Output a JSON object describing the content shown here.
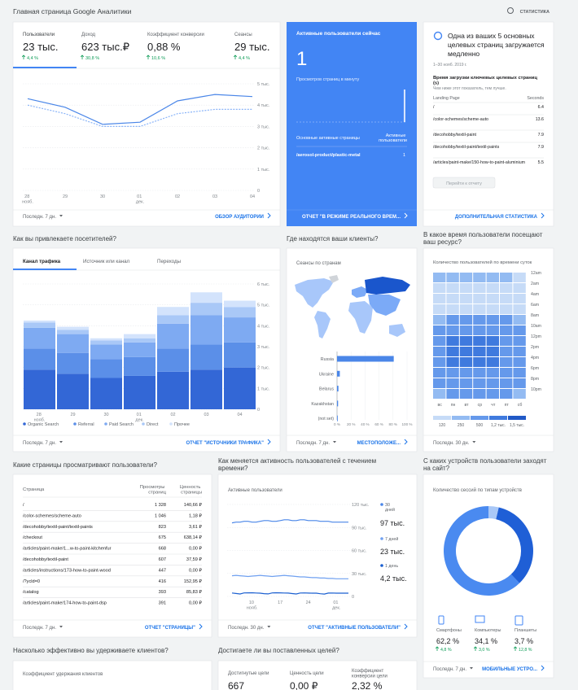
{
  "header": {
    "title": "Главная страница Google Аналитики",
    "action": "СТАТИСТИКА"
  },
  "audience": {
    "metrics": [
      {
        "name": "Пользователи",
        "value": "23 тыс.",
        "change": "4,4 %"
      },
      {
        "name": "Доход",
        "value": "623 тыс.₽",
        "change": "30,8 %"
      },
      {
        "name": "Коэффициент конверсии",
        "value": "0,88 %",
        "change": "10,6 %"
      },
      {
        "name": "Сеансы",
        "value": "29 тыс.",
        "change": "4,4 %"
      }
    ],
    "chart": {
      "type": "line",
      "x": [
        "28 нояб.",
        "29",
        "30",
        "01 дек.",
        "02",
        "03",
        "04"
      ],
      "series": [
        {
          "color": "#4a86e8",
          "values": [
            4300,
            3900,
            3100,
            3200,
            4200,
            4500,
            4400
          ]
        },
        {
          "color": "#8ab4f8",
          "dashed": true,
          "values": [
            4000,
            3600,
            3000,
            3000,
            3600,
            3800,
            3800
          ]
        }
      ],
      "ylim": [
        0,
        5000
      ],
      "yticks": [
        0,
        {
          "value": 1000,
          "label": "1 тыс."
        },
        {
          "value": 2000,
          "label": "2 тыс."
        },
        {
          "value": 3000,
          "label": "3 тыс."
        },
        {
          "value": 4000,
          "label": "4 тыс."
        },
        {
          "value": 5000,
          "label": "5 тыс."
        }
      ],
      "grid": true
    },
    "period": "Последн. 7 дн.",
    "link": "ОБЗОР АУДИТОРИИ"
  },
  "realtime": {
    "title": "Активные пользователи сейчас",
    "value": "1",
    "pageviews_label": "Просмотров страниц в минуту",
    "pageviews": [
      0,
      0,
      0,
      0,
      0,
      0,
      0,
      0,
      0,
      0,
      0,
      0,
      0,
      0,
      0,
      0,
      0,
      0,
      0,
      0,
      0,
      0,
      0,
      0,
      0,
      0,
      0,
      0,
      0,
      1
    ],
    "pages_header": "Основные активные страницы",
    "users_header": "Активные пользователи",
    "pages": [
      {
        "page": "/aerosol-product/plastic-metal",
        "users": "1"
      }
    ],
    "link": "ОТЧЕТ \"В РЕЖИМЕ РЕАЛЬНОГО ВРЕМ..."
  },
  "insight": {
    "title": "Одна из ваших 5 основных целевых страниц загружается медленно",
    "date": "1–30 нояб. 2019 г.",
    "subtitle": "Время загрузки ключевых целевых страниц (s)",
    "note": "Чем ниже этот показатель, тем лучше.",
    "columns": [
      "Landing Page",
      "Seconds"
    ],
    "rows": [
      [
        "/",
        "6.4"
      ],
      [
        "/color-schemes/scheme-auto",
        "13.6"
      ],
      [
        "/decohobby/textil-paint",
        "7.9"
      ],
      [
        "/decohobby/textil-paint/textil-paints",
        "7.9"
      ],
      [
        "/articles/paint-make/150-how-to-paint-aluminium",
        "5.5"
      ]
    ],
    "button": "Перейти к отчету",
    "link": "ДОПОЛНИТЕЛЬНАЯ СТАТИСТИКА"
  },
  "traffic": {
    "heading": "Как вы привлекаете посетителей?",
    "tabs": [
      "Канал трафика",
      "Источник или канал",
      "Переходы"
    ],
    "chart": {
      "type": "bar",
      "stacked": true,
      "x": [
        "28 нояб.",
        "29",
        "30",
        "01 дек.",
        "02",
        "03",
        "04"
      ],
      "series": [
        {
          "name": "Organic Search",
          "color": "#3367d6",
          "values": [
            1900,
            1700,
            1500,
            1600,
            1800,
            1900,
            2000
          ]
        },
        {
          "name": "Referral",
          "color": "#5b8fe8",
          "values": [
            1000,
            1000,
            900,
            900,
            1100,
            1200,
            1200
          ]
        },
        {
          "name": "Paid Search",
          "color": "#7eaaf2",
          "values": [
            1000,
            900,
            700,
            700,
            1200,
            1400,
            1200
          ]
        },
        {
          "name": "Direct",
          "color": "#a9c8f7",
          "values": [
            250,
            200,
            200,
            200,
            400,
            600,
            500
          ]
        },
        {
          "name": "Прочее",
          "color": "#d3e3fc",
          "values": [
            100,
            150,
            100,
            200,
            400,
            500,
            300
          ]
        }
      ],
      "ylim": [
        0,
        6000
      ],
      "yticks": [
        0,
        {
          "value": 1000,
          "label": "1 тыс."
        },
        {
          "value": 2000,
          "label": "2 тыс."
        },
        {
          "value": 3000,
          "label": "3 тыс."
        },
        {
          "value": 4000,
          "label": "4 тыс."
        },
        {
          "value": 5000,
          "label": "5 тыс."
        },
        {
          "value": 6000,
          "label": "6 тыс."
        }
      ],
      "grid": true
    },
    "period": "Последн. 7 дн.",
    "link": "ОТЧЕТ \"ИСТОЧНИКИ ТРАФИКА\""
  },
  "geo": {
    "heading": "Где находятся ваши клиенты?",
    "subtitle": "Сеансы по странам",
    "chart": {
      "type": "bar",
      "orientation": "horizontal",
      "categories": [
        "Russia",
        "Ukraine",
        "Belarus",
        "Kazakhstan",
        "(not set)"
      ],
      "values": [
        81,
        4,
        2,
        1.5,
        1
      ],
      "color": "#4a86e8",
      "xlim": [
        0,
        100
      ],
      "xticks": [
        {
          "value": 0,
          "label": "0 %"
        },
        {
          "value": 20,
          "label": "20 %"
        },
        {
          "value": 40,
          "label": "40 %"
        },
        {
          "value": 60,
          "label": "60 %"
        },
        {
          "value": 80,
          "label": "80 %"
        },
        {
          "value": 100,
          "label": "100 %"
        }
      ]
    },
    "period": "Последн. 7 дн.",
    "link": "МЕСТОПОЛОЖЕ..."
  },
  "time": {
    "heading": "В какое время пользователи посещают ваш ресурс?",
    "subtitle": "Количество пользователей по времени суток",
    "chart": {
      "type": "heatmap",
      "hours": [
        "12am",
        "2am",
        "4am",
        "6am",
        "8am",
        "10am",
        "12pm",
        "2pm",
        "4pm",
        "6pm",
        "8pm",
        "10pm"
      ],
      "days": [
        "вс",
        "пн",
        "вт",
        "ср",
        "чт",
        "пт",
        "сб"
      ],
      "values": [
        [
          250,
          300,
          320,
          310,
          300,
          280,
          220
        ],
        [
          120,
          140,
          150,
          150,
          140,
          130,
          110
        ],
        [
          90,
          100,
          110,
          100,
          100,
          100,
          90
        ],
        [
          130,
          220,
          230,
          220,
          220,
          210,
          140
        ],
        [
          380,
          700,
          720,
          700,
          690,
          650,
          400
        ],
        [
          650,
          1100,
          1150,
          1120,
          1100,
          1000,
          620
        ],
        [
          750,
          1250,
          1300,
          1280,
          1250,
          1100,
          700
        ],
        [
          760,
          1300,
          1350,
          1300,
          1280,
          1100,
          690
        ],
        [
          720,
          1200,
          1250,
          1220,
          1200,
          1000,
          640
        ],
        [
          640,
          950,
          980,
          960,
          940,
          800,
          560
        ],
        [
          600,
          800,
          820,
          800,
          780,
          650,
          520
        ],
        [
          480,
          600,
          620,
          610,
          600,
          500,
          420
        ]
      ],
      "scale": [
        {
          "value": 120,
          "label": "120",
          "color": "#c6dbf7"
        },
        {
          "value": 250,
          "label": "250",
          "color": "#93bbf2"
        },
        {
          "value": 500,
          "label": "500",
          "color": "#6599eb"
        },
        {
          "value": 1200,
          "label": "1,2 тыс.",
          "color": "#3f7ade"
        },
        {
          "value": 1500,
          "label": "1,5 тыс.",
          "color": "#2159c6"
        }
      ]
    },
    "period": "Последн. 30 дн."
  },
  "pages": {
    "heading": "Какие страницы просматривают пользователи?",
    "columns": [
      "Страница",
      "Просмотры страниц",
      "Ценность страницы"
    ],
    "rows": [
      [
        "/",
        "1 328",
        "140,66 ₽"
      ],
      [
        "/color-schemes/scheme-auto",
        "1 046",
        "1,18 ₽"
      ],
      [
        "/decohobby/textil-paint/textil-paints",
        "823",
        "3,61 ₽"
      ],
      [
        "/checkout",
        "675",
        "638,14 ₽"
      ],
      [
        "/articles/paint-make/1...w-to-paint-kitchenfur",
        "668",
        "0,00 ₽"
      ],
      [
        "/decohobby/textil-paint",
        "607",
        "37,59 ₽"
      ],
      [
        "/articles/instructions/173-how-to-paint-wood",
        "447",
        "0,00 ₽"
      ],
      [
        "/?ycld=0",
        "416",
        "152,95 ₽"
      ],
      [
        "/catalog",
        "393",
        "85,83 ₽"
      ],
      [
        "/articles/paint-make/174-how-to-paint-dsp",
        "391",
        "0,00 ₽"
      ]
    ],
    "period": "Последн. 7 дн.",
    "link": "ОТЧЕТ \"СТРАНИЦЫ\""
  },
  "active": {
    "heading": "Как меняется активность пользователей с течением времени?",
    "subtitle": "Активные пользователи",
    "chart": {
      "type": "line",
      "x": [
        null,
        null,
        null,
        null,
        null,
        "10 нояб.",
        null,
        null,
        null,
        null,
        null,
        null,
        "17",
        null,
        null,
        null,
        null,
        null,
        null,
        "24",
        null,
        null,
        null,
        null,
        null,
        null,
        "01 дек.",
        null,
        null,
        null
      ],
      "series": [
        {
          "name": "30 дней",
          "total": "97 тыс.",
          "color": "#4a86e8",
          "values": [
            96000,
            97000,
            97000,
            98000,
            98000,
            97000,
            97000,
            98000,
            99000,
            99000,
            98000,
            98000,
            99000,
            100000,
            100000,
            99000,
            99000,
            100000,
            100000,
            99000,
            99000,
            99000,
            98000,
            98000,
            98000,
            97000,
            97000,
            97000,
            97000,
            97000
          ]
        },
        {
          "name": "7 дней",
          "total": "23 тыс.",
          "color": "#6fa0f0",
          "values": [
            27000,
            27500,
            27000,
            26500,
            26000,
            26500,
            27000,
            27500,
            27000,
            26500,
            26000,
            26500,
            27000,
            27500,
            27000,
            26500,
            26000,
            25500,
            25500,
            25000,
            24500,
            24500,
            24000,
            24000,
            23500,
            23500,
            23000,
            23000,
            23000,
            23000
          ]
        },
        {
          "name": "1 день",
          "total": "4,2 тыс.",
          "color": "#1a5fd0",
          "values": [
            4500,
            3800,
            3200,
            4600,
            4700,
            4800,
            4500,
            4300,
            3600,
            3300,
            4600,
            4800,
            4700,
            4500,
            4400,
            3700,
            3200,
            4500,
            4600,
            4400,
            4300,
            4200,
            3500,
            3100,
            4400,
            4500,
            4300,
            4300,
            4200,
            4200
          ]
        }
      ],
      "ylim": [
        0,
        120000
      ],
      "yticks": [
        0,
        {
          "value": 30000,
          "label": "30 тыс."
        },
        {
          "value": 60000,
          "label": "60 тыс."
        },
        {
          "value": 90000,
          "label": "90 тыс."
        },
        {
          "value": 120000,
          "label": "120 тыс."
        }
      ],
      "grid": true
    },
    "period": "Последн. 30 дн.",
    "link": "ОТЧЕТ \"АКТИВНЫЕ ПОЛЬЗОВАТЕЛИ\""
  },
  "devices": {
    "heading": "С каких устройств пользователи заходят на сайт?",
    "subtitle": "Количество сессий по типам устройств",
    "chart": {
      "type": "pie",
      "donut": true,
      "categories": [
        "Смартфоны",
        "Компьютеры",
        "Планшеты"
      ],
      "values": [
        62.2,
        34.1,
        3.7
      ],
      "value_labels": [
        "62,2 %",
        "34,1 %",
        "3,7 %"
      ],
      "changes": [
        "4,8 %",
        "3,0 %",
        "12,8 %"
      ],
      "colors": [
        "#4a8af0",
        "#1f5fd6",
        "#a9c8f7"
      ]
    },
    "period": "Последн. 7 дн.",
    "link": "МОБИЛЬНЫЕ УСТРО..."
  },
  "retention": {
    "heading": "Насколько эффективно вы удерживаете клиентов?",
    "subtitle": "Коэффициент удержания клиентов"
  },
  "goals": {
    "heading": "Достигаете ли вы поставленных целей?",
    "metrics": [
      {
        "name": "Достигнутые цели",
        "value": "667"
      },
      {
        "name": "Ценность цели",
        "value": "0,00 ₽"
      },
      {
        "name": "Коэффициент конверсии цели",
        "value": "2,32 %"
      }
    ]
  }
}
